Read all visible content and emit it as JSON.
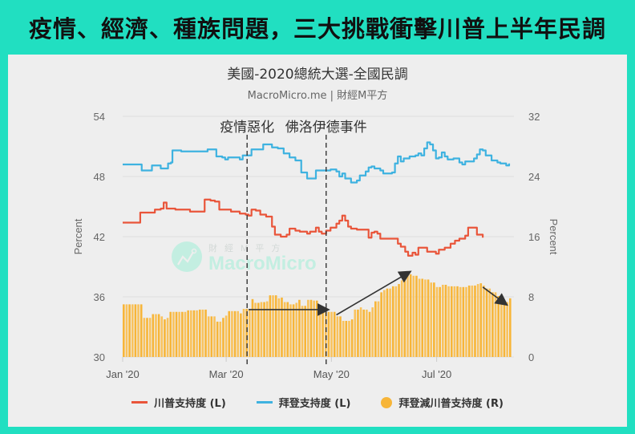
{
  "banner": {
    "title": "疫情、經濟、種族問題，三大挑戰衝擊川普上半年民調"
  },
  "chart_header": {
    "title": "美國-2020總統大選-全國民調",
    "subtitle": "MacroMicro.me | 財經M平方"
  },
  "watermark": {
    "cn": "財 經 M 平 方",
    "en": "MacroMicro"
  },
  "annotations": [
    {
      "label": "疫情惡化",
      "date_index": 85
    },
    {
      "label": "佛洛伊德事件",
      "date_index": 139
    }
  ],
  "colors": {
    "banner": "#21dfc1",
    "trump": "#e9553a",
    "biden": "#3eb2e0",
    "spread": "#f7b538",
    "card": "#eeeeee"
  },
  "legend": [
    {
      "label": "川普支持度 (L)",
      "type": "line",
      "color": "#e9553a"
    },
    {
      "label": "拜登支持度 (L)",
      "type": "line",
      "color": "#3eb2e0"
    },
    {
      "label": "拜登減川普支持度 (R)",
      "type": "dot",
      "color": "#f7b538"
    }
  ],
  "chart_data": {
    "type": "line+bar",
    "title": "美國-2020總統大選-全國民調",
    "subtitle": "MacroMicro.me | 財經M平方",
    "xlabel": "",
    "ylabel_left": "Percent",
    "ylabel_right": "Percent",
    "ylim_left": [
      30,
      54
    ],
    "ylim_right": [
      0,
      32
    ],
    "yticks_left": [
      30,
      36,
      42,
      48,
      54
    ],
    "yticks_right": [
      0,
      8,
      16,
      24,
      32
    ],
    "xticks": [
      {
        "label": "Jan '20",
        "day": 0
      },
      {
        "label": "Mar '20",
        "day": 60
      },
      {
        "label": "May '20",
        "day": 121
      },
      {
        "label": "Jul '20",
        "day": 182
      }
    ],
    "x_days_range": [
      0,
      215
    ],
    "grid": true,
    "legend_position": "bottom",
    "series": [
      {
        "name": "川普支持度 (L)",
        "axis": "left",
        "kind": "line",
        "points": [
          [
            0,
            43.4
          ],
          [
            11,
            43.4
          ],
          [
            12,
            44.4
          ],
          [
            20,
            44.4
          ],
          [
            22,
            44.7
          ],
          [
            26,
            44.8
          ],
          [
            28,
            45.4
          ],
          [
            30,
            44.8
          ],
          [
            36,
            44.7
          ],
          [
            44,
            44.7
          ],
          [
            46,
            44.5
          ],
          [
            52,
            44.5
          ],
          [
            56,
            45.7
          ],
          [
            60,
            45.6
          ],
          [
            63,
            45.5
          ],
          [
            66,
            44.7
          ],
          [
            72,
            44.7
          ],
          [
            74,
            44.5
          ],
          [
            78,
            44.5
          ],
          [
            80,
            44.3
          ],
          [
            84,
            44.2
          ],
          [
            86,
            44.1
          ],
          [
            88,
            44.7
          ],
          [
            91,
            44.6
          ],
          [
            94,
            44.2
          ],
          [
            98,
            44.0
          ],
          [
            102,
            43.0
          ],
          [
            104,
            42.2
          ],
          [
            108,
            42.0
          ],
          [
            112,
            42.2
          ],
          [
            114,
            42.8
          ],
          [
            118,
            42.6
          ],
          [
            121,
            42.5
          ],
          [
            126,
            42.3
          ],
          [
            128,
            42.5
          ],
          [
            132,
            42.9
          ],
          [
            134,
            42.5
          ],
          [
            136,
            42.3
          ],
          [
            139,
            42.6
          ],
          [
            142,
            42.9
          ],
          [
            146,
            43.3
          ],
          [
            148,
            43.6
          ],
          [
            150,
            44.1
          ],
          [
            152,
            43.6
          ],
          [
            154,
            43.0
          ],
          [
            156,
            42.8
          ],
          [
            160,
            42.7
          ],
          [
            166,
            42.7
          ],
          [
            168,
            41.9
          ],
          [
            170,
            42.4
          ],
          [
            172,
            42.5
          ],
          [
            174,
            42.3
          ],
          [
            176,
            41.8
          ],
          [
            184,
            41.8
          ],
          [
            188,
            41.3
          ],
          [
            190,
            41.0
          ],
          [
            193,
            40.5
          ],
          [
            195,
            40.1
          ],
          [
            198,
            40.4
          ],
          [
            200,
            40.2
          ],
          [
            202,
            40.9
          ],
          [
            206,
            40.9
          ],
          [
            208,
            40.5
          ],
          [
            214,
            40.3
          ],
          [
            216,
            40.7
          ],
          [
            220,
            40.9
          ],
          [
            224,
            41.3
          ],
          [
            227,
            41.6
          ],
          [
            230,
            41.8
          ],
          [
            234,
            42.1
          ],
          [
            236,
            42.9
          ],
          [
            240,
            42.9
          ],
          [
            242,
            42.2
          ],
          [
            246,
            41.9
          ]
        ]
      },
      {
        "name": "拜登支持度 (L)",
        "axis": "left",
        "kind": "line",
        "points": [
          [
            0,
            49.2
          ],
          [
            12,
            49.2
          ],
          [
            13,
            48.6
          ],
          [
            18,
            48.6
          ],
          [
            20,
            49.1
          ],
          [
            24,
            49.1
          ],
          [
            26,
            48.8
          ],
          [
            28,
            48.8
          ],
          [
            31,
            49.3
          ],
          [
            33,
            49.4
          ],
          [
            34,
            50.6
          ],
          [
            38,
            50.6
          ],
          [
            40,
            50.5
          ],
          [
            56,
            50.5
          ],
          [
            58,
            50.7
          ],
          [
            62,
            50.7
          ],
          [
            64,
            50.0
          ],
          [
            68,
            49.9
          ],
          [
            70,
            49.7
          ],
          [
            72,
            49.9
          ],
          [
            78,
            49.9
          ],
          [
            80,
            49.7
          ],
          [
            82,
            50.1
          ],
          [
            86,
            50.1
          ],
          [
            88,
            50.7
          ],
          [
            94,
            50.7
          ],
          [
            96,
            51.2
          ],
          [
            100,
            51.2
          ],
          [
            102,
            50.9
          ],
          [
            106,
            50.8
          ],
          [
            110,
            50.3
          ],
          [
            112,
            50.3
          ],
          [
            114,
            49.9
          ],
          [
            118,
            49.6
          ],
          [
            122,
            48.4
          ],
          [
            126,
            47.8
          ],
          [
            130,
            47.8
          ],
          [
            132,
            48.6
          ],
          [
            136,
            48.6
          ],
          [
            142,
            48.7
          ],
          [
            146,
            48.5
          ],
          [
            148,
            48.0
          ],
          [
            150,
            48.3
          ],
          [
            152,
            47.8
          ],
          [
            156,
            47.4
          ],
          [
            160,
            47.6
          ],
          [
            162,
            48.1
          ],
          [
            166,
            48.5
          ],
          [
            168,
            48.9
          ],
          [
            170,
            49.0
          ],
          [
            172,
            48.8
          ],
          [
            176,
            48.6
          ],
          [
            178,
            48.3
          ],
          [
            180,
            48.3
          ],
          [
            184,
            48.4
          ],
          [
            186,
            49.3
          ],
          [
            188,
            50.0
          ],
          [
            190,
            49.5
          ],
          [
            192,
            49.8
          ],
          [
            196,
            50.0
          ],
          [
            200,
            50.1
          ],
          [
            202,
            50.3
          ],
          [
            204,
            50.1
          ],
          [
            206,
            50.8
          ],
          [
            208,
            51.4
          ],
          [
            210,
            51.2
          ],
          [
            212,
            50.6
          ],
          [
            214,
            49.8
          ],
          [
            216,
            49.9
          ],
          [
            218,
            50.4
          ],
          [
            220,
            50.0
          ],
          [
            222,
            49.7
          ],
          [
            226,
            49.8
          ],
          [
            230,
            49.4
          ],
          [
            232,
            49.2
          ],
          [
            234,
            49.5
          ],
          [
            236,
            49.5
          ],
          [
            240,
            49.8
          ],
          [
            242,
            50.2
          ],
          [
            244,
            50.7
          ],
          [
            246,
            50.6
          ],
          [
            248,
            50.1
          ],
          [
            252,
            49.6
          ],
          [
            256,
            49.4
          ],
          [
            258,
            49.3
          ],
          [
            262,
            49.1
          ],
          [
            264,
            49.3
          ]
        ]
      },
      {
        "name": "拜登減川普支持度 (R)",
        "axis": "right",
        "kind": "bar",
        "points": [
          [
            0,
            7
          ],
          [
            12,
            7
          ],
          [
            13,
            5.2
          ],
          [
            18,
            5.2
          ],
          [
            20,
            5.7
          ],
          [
            24,
            5.7
          ],
          [
            26,
            5.4
          ],
          [
            28,
            5.0
          ],
          [
            30,
            5.2
          ],
          [
            32,
            6.0
          ],
          [
            36,
            6.0
          ],
          [
            44,
            6.2
          ],
          [
            52,
            6.3
          ],
          [
            56,
            6.3
          ],
          [
            58,
            5.4
          ],
          [
            62,
            5.4
          ],
          [
            64,
            4.7
          ],
          [
            68,
            5.2
          ],
          [
            70,
            5.5
          ],
          [
            72,
            6.1
          ],
          [
            78,
            6.1
          ],
          [
            80,
            5.8
          ],
          [
            82,
            6.4
          ],
          [
            86,
            6.4
          ],
          [
            88,
            7.7
          ],
          [
            90,
            7.2
          ],
          [
            94,
            7.3
          ],
          [
            98,
            7.4
          ],
          [
            100,
            8.2
          ],
          [
            104,
            8.2
          ],
          [
            106,
            7.8
          ],
          [
            108,
            7.9
          ],
          [
            110,
            7.3
          ],
          [
            114,
            7.0
          ],
          [
            118,
            7.2
          ],
          [
            120,
            7.6
          ],
          [
            122,
            6.8
          ],
          [
            126,
            7.6
          ],
          [
            130,
            7.5
          ],
          [
            134,
            6.8
          ],
          [
            136,
            6.5
          ],
          [
            138,
            6.6
          ],
          [
            140,
            6.0
          ],
          [
            144,
            6.0
          ],
          [
            146,
            5.4
          ],
          [
            150,
            4.8
          ],
          [
            156,
            5.0
          ],
          [
            158,
            6.3
          ],
          [
            162,
            6.6
          ],
          [
            164,
            6.3
          ],
          [
            168,
            6.0
          ],
          [
            170,
            6.6
          ],
          [
            172,
            7.4
          ],
          [
            176,
            8.6
          ],
          [
            178,
            8.9
          ],
          [
            180,
            9.1
          ],
          [
            184,
            9.4
          ],
          [
            188,
            9.7
          ],
          [
            190,
            10.2
          ],
          [
            194,
            10.9
          ],
          [
            196,
            11.0
          ],
          [
            198,
            10.8
          ],
          [
            202,
            10.4
          ],
          [
            206,
            10.3
          ],
          [
            210,
            9.9
          ],
          [
            214,
            9.3
          ],
          [
            218,
            9.6
          ],
          [
            222,
            9.4
          ],
          [
            226,
            9.4
          ],
          [
            230,
            9.3
          ],
          [
            234,
            9.3
          ],
          [
            236,
            9.5
          ],
          [
            240,
            9.5
          ],
          [
            242,
            9.7
          ],
          [
            244,
            9.8
          ],
          [
            246,
            9.5
          ],
          [
            248,
            9.1
          ],
          [
            252,
            8.6
          ],
          [
            256,
            8.1
          ],
          [
            258,
            7.3
          ],
          [
            260,
            7.1
          ],
          [
            262,
            7.3
          ],
          [
            264,
            7.8
          ]
        ]
      }
    ],
    "arrows": [
      {
        "from": [
          86,
          6.3
        ],
        "to": [
          140,
          6.3
        ]
      },
      {
        "from": [
          146,
          5.6
        ],
        "to": [
          196,
          11.3
        ]
      },
      {
        "from": [
          246,
          9.3
        ],
        "to": [
          262,
          7.0
        ]
      }
    ]
  }
}
